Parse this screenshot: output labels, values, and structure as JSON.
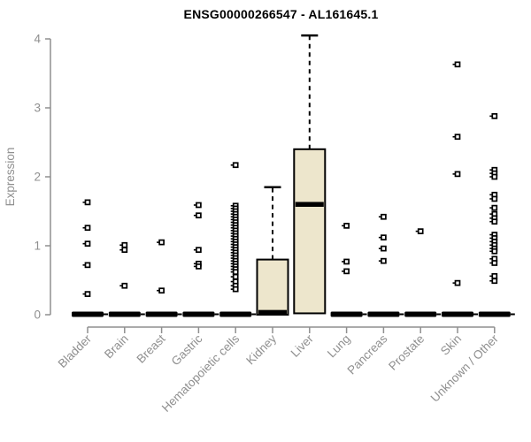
{
  "chart_data": {
    "type": "boxplot",
    "title": "ENSG00000266547 - AL161645.1",
    "ylabel": "Expression",
    "xlabel": "",
    "ylim": [
      0,
      4.1
    ],
    "yticks": [
      "0",
      "1",
      "2",
      "3",
      "4"
    ],
    "legend": "none",
    "grid": false,
    "categories": [
      "Bladder",
      "Brain",
      "Breast",
      "Gastric",
      "Hematopoietic cells",
      "Kidney",
      "Liver",
      "Lung",
      "Pancreas",
      "Prostate",
      "Skin",
      "Unknown / Other"
    ],
    "boxes": [
      {
        "category": "Bladder",
        "q1": 0,
        "median": 0,
        "q3": 0,
        "whisker_low": 0,
        "whisker_high": 0,
        "collapsed": true,
        "outliers": [
          1.63,
          1.26,
          1.03,
          0.72,
          0.3
        ]
      },
      {
        "category": "Brain",
        "q1": 0,
        "median": 0,
        "q3": 0,
        "whisker_low": 0,
        "whisker_high": 0,
        "collapsed": true,
        "outliers": [
          1.01,
          0.94,
          0.42
        ]
      },
      {
        "category": "Breast",
        "q1": 0,
        "median": 0,
        "q3": 0,
        "whisker_low": 0,
        "whisker_high": 0,
        "collapsed": true,
        "outliers": [
          1.05,
          0.35
        ]
      },
      {
        "category": "Gastric",
        "q1": 0,
        "median": 0,
        "q3": 0,
        "whisker_low": 0,
        "whisker_high": 0,
        "collapsed": true,
        "outliers": [
          1.59,
          1.44,
          0.94,
          0.74,
          0.7
        ]
      },
      {
        "category": "Hematopoietic cells",
        "q1": 0,
        "median": 0,
        "q3": 0,
        "whisker_low": 0,
        "whisker_high": 0,
        "collapsed": true,
        "outliers": [
          2.17,
          1.58,
          1.54,
          1.5,
          1.46,
          1.42,
          1.38,
          1.34,
          1.3,
          1.26,
          1.22,
          1.18,
          1.14,
          1.1,
          1.06,
          1.02,
          0.98,
          0.94,
          0.9,
          0.86,
          0.82,
          0.78,
          0.74,
          0.7,
          0.66,
          0.62,
          0.55,
          0.48,
          0.42,
          0.37
        ]
      },
      {
        "category": "Kidney",
        "q1": 0,
        "median": 0.03,
        "q3": 0.8,
        "whisker_low": 0,
        "whisker_high": 1.85,
        "collapsed": false,
        "outliers": []
      },
      {
        "category": "Liver",
        "q1": 0.02,
        "median": 1.6,
        "q3": 2.4,
        "whisker_low": 0.02,
        "whisker_high": 4.05,
        "collapsed": false,
        "outliers": []
      },
      {
        "category": "Lung",
        "q1": 0,
        "median": 0,
        "q3": 0,
        "whisker_low": 0,
        "whisker_high": 0,
        "collapsed": true,
        "outliers": [
          1.29,
          0.77,
          0.63
        ]
      },
      {
        "category": "Pancreas",
        "q1": 0,
        "median": 0,
        "q3": 0,
        "whisker_low": 0,
        "whisker_high": 0,
        "collapsed": true,
        "outliers": [
          1.42,
          1.12,
          0.96,
          0.78
        ]
      },
      {
        "category": "Prostate",
        "q1": 0,
        "median": 0,
        "q3": 0,
        "whisker_low": 0,
        "whisker_high": 0,
        "collapsed": true,
        "outliers": [
          1.21
        ]
      },
      {
        "category": "Skin",
        "q1": 0,
        "median": 0,
        "q3": 0,
        "whisker_low": 0,
        "whisker_high": 0,
        "collapsed": true,
        "outliers": [
          3.63,
          2.58,
          2.04,
          0.46
        ]
      },
      {
        "category": "Unknown / Other",
        "q1": 0,
        "median": 0,
        "q3": 0,
        "whisker_low": 0,
        "whisker_high": 0,
        "collapsed": true,
        "outliers": [
          2.88,
          2.1,
          2.05,
          2.0,
          1.74,
          1.68,
          1.55,
          1.46,
          1.4,
          1.35,
          1.16,
          1.11,
          1.06,
          1.01,
          0.96,
          0.92,
          0.81,
          0.75,
          0.56,
          0.49
        ]
      }
    ],
    "colors": {
      "box_fill": "#EDE6CC",
      "box_border": "#000000",
      "median": "#000000",
      "whisker": "#000000",
      "outlier": "#000000",
      "axis_line": "#8f8f8f",
      "axis_text": "#8f8f8f",
      "title_text": "#000000",
      "background": "#ffffff"
    }
  }
}
